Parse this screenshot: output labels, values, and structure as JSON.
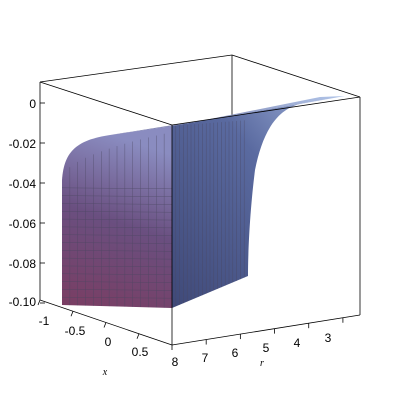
{
  "chart_data": {
    "type": "surface3d",
    "xlabel": "x",
    "ylabel": "r",
    "zlabel": "",
    "x_range": [
      -1,
      1
    ],
    "r_range": [
      2.5,
      8
    ],
    "z_range": [
      -0.1,
      0.01
    ],
    "x_ticks": [
      "-1",
      "-0.5",
      "0",
      "0.5"
    ],
    "r_ticks": [
      "8",
      "7",
      "6",
      "5",
      "4",
      "3"
    ],
    "z_ticks": [
      "0",
      "-0.02",
      "-0.04",
      "-0.06",
      "-0.08",
      "-0.10"
    ],
    "surface_profile": {
      "r": [
        2.5,
        3,
        3.5,
        4,
        4.5,
        5,
        5.5,
        6,
        6.5,
        7,
        7.5,
        8
      ],
      "z_at_x_minus_1": [
        0.0,
        -0.007,
        -0.012,
        -0.016,
        -0.021,
        -0.028,
        -0.04,
        -0.062,
        -0.082,
        -0.094,
        -0.098,
        -0.1
      ],
      "z_at_x_plus_1": [
        0.0,
        -0.006,
        -0.011,
        -0.017,
        -0.026,
        -0.04,
        -0.056,
        -0.066,
        -0.071,
        -0.073,
        -0.074,
        -0.075
      ]
    },
    "box": true,
    "colors": {
      "low": "#7a3d62",
      "high": "#a4b6de",
      "mesh": "#4a4660",
      "box": "#000000"
    }
  }
}
